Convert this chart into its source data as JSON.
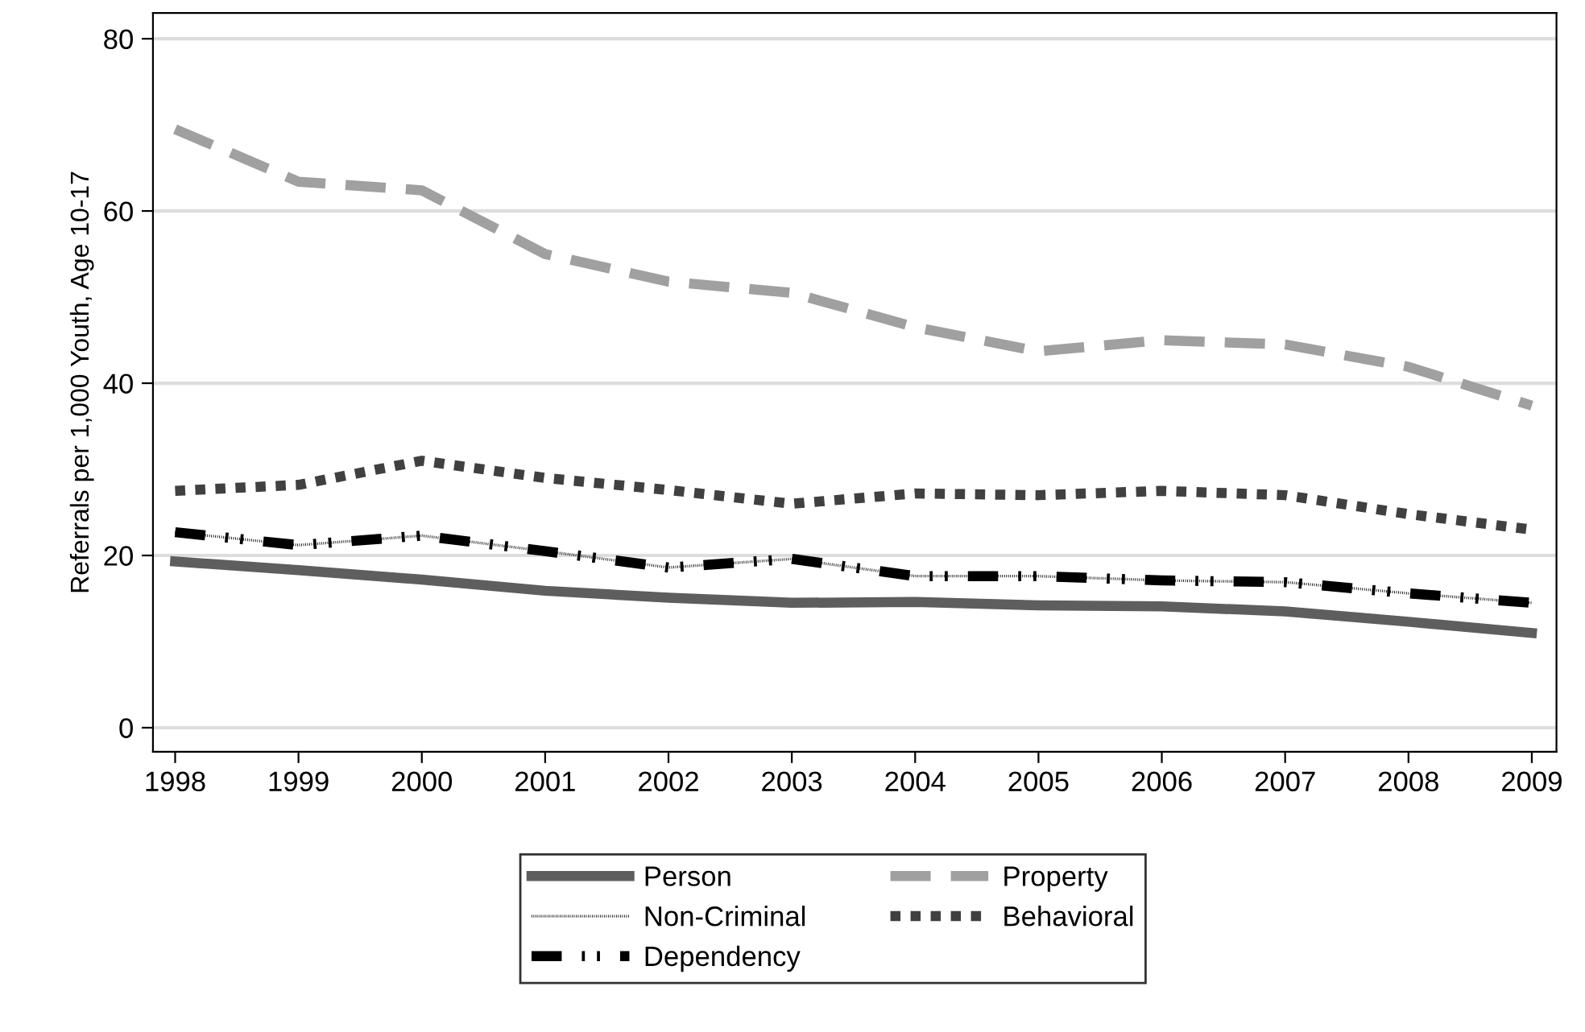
{
  "chart_data": {
    "type": "line",
    "ylabel": "Referrals per 1,000 Youth, Age 10-17",
    "x": [
      1998,
      1999,
      2000,
      2001,
      2002,
      2003,
      2004,
      2005,
      2006,
      2007,
      2008,
      2009
    ],
    "xlim": [
      1997.82,
      2009.2
    ],
    "xticks": [
      1998,
      1999,
      2000,
      2001,
      2002,
      2003,
      2004,
      2005,
      2006,
      2007,
      2008,
      2009
    ],
    "ylim": [
      -2.8,
      83
    ],
    "yticks": [
      0,
      20,
      40,
      60,
      80
    ],
    "grid": "y",
    "legend": "bottom",
    "marker": "none",
    "series": [
      {
        "name": "Person",
        "color": "#5e5e5e",
        "line_style": "solid",
        "values": [
          19.3,
          18.3,
          17.2,
          15.9,
          15.1,
          14.5,
          14.6,
          14.2,
          14.1,
          13.5,
          12.3,
          11.0
        ]
      },
      {
        "name": "Non-Criminal",
        "color": "#000000",
        "line_style": "dotted",
        "values": [
          22.7,
          21.2,
          22.3,
          20.5,
          18.6,
          19.6,
          17.6,
          17.6,
          17.1,
          16.9,
          15.6,
          14.5
        ]
      },
      {
        "name": "Dependency",
        "color": "#000000",
        "line_style": "dashdot",
        "values": [
          22.7,
          21.2,
          22.3,
          20.5,
          18.6,
          19.6,
          17.6,
          17.6,
          17.1,
          16.9,
          15.6,
          14.5
        ]
      },
      {
        "name": "Property",
        "color": "#a0a0a0",
        "line_style": "dashed",
        "values": [
          69.5,
          63.4,
          62.4,
          55.0,
          51.8,
          50.5,
          46.5,
          43.7,
          45.0,
          44.5,
          41.9,
          37.4
        ]
      },
      {
        "name": "Behavioral",
        "color": "#404040",
        "line_style": "dotted",
        "values": [
          27.5,
          28.2,
          31.0,
          29.0,
          27.6,
          26.0,
          27.2,
          27.0,
          27.5,
          27.0,
          24.8,
          23.0
        ]
      }
    ]
  }
}
